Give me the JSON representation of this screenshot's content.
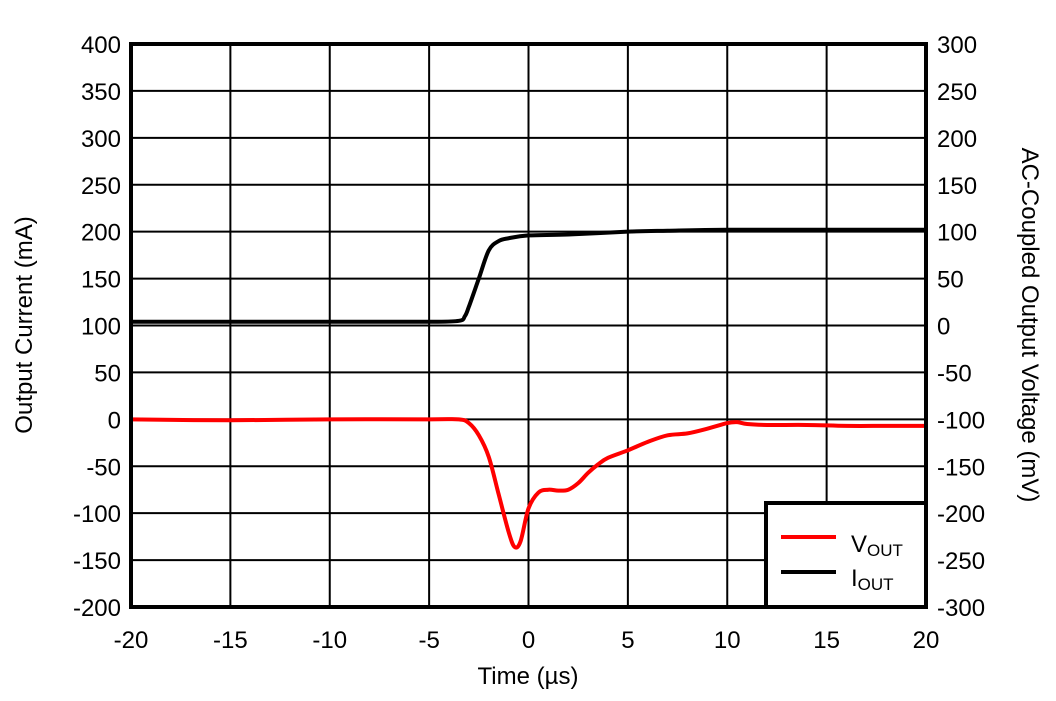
{
  "chart_data": {
    "type": "line",
    "title": "",
    "xlabel": "Time (µs)",
    "ylabel": "Output Current (mA)",
    "ylabel_right": "AC-Coupled Output Voltage (mV)",
    "xlim": [
      -20,
      20
    ],
    "ylim": [
      -200,
      400
    ],
    "ylim_right": [
      -300,
      300
    ],
    "x_ticks": [
      "-20",
      "-15",
      "-10",
      "-5",
      "0",
      "5",
      "10",
      "15",
      "20"
    ],
    "y_ticks": [
      "400",
      "350",
      "300",
      "250",
      "200",
      "150",
      "100",
      "50",
      "0",
      "-50",
      "-100",
      "-150",
      "-200"
    ],
    "y_ticks_right": [
      "300",
      "250",
      "200",
      "150",
      "100",
      "50",
      "0",
      "-50",
      "-100",
      "-150",
      "-200",
      "-250",
      "-300"
    ],
    "grid": true,
    "legend_position": "lower right",
    "series": [
      {
        "name": "VOUT",
        "label_main": "V",
        "label_sub": "OUT",
        "axis": "right",
        "color": "#ff0000",
        "x": [
          -20,
          -15,
          -10,
          -5,
          -3.5,
          -3,
          -2.5,
          -2,
          -1.5,
          -1,
          -0.7,
          -0.4,
          0,
          0.5,
          1,
          1.5,
          2,
          2.5,
          3,
          3.5,
          4,
          5,
          6,
          7,
          8,
          9,
          10,
          10.5,
          11,
          12,
          14,
          16,
          18,
          20
        ],
        "y": [
          -100,
          -101,
          -100,
          -100,
          -100,
          -104,
          -117,
          -140,
          -180,
          -220,
          -236,
          -230,
          -195,
          -178,
          -175,
          -176,
          -175,
          -168,
          -157,
          -148,
          -141,
          -133,
          -124,
          -117,
          -115,
          -110,
          -104,
          -103,
          -105,
          -106,
          -106,
          -107,
          -107,
          -107
        ]
      },
      {
        "name": "IOUT",
        "label_main": "I",
        "label_sub": "OUT",
        "axis": "left",
        "color": "#000000",
        "x": [
          -20,
          -15,
          -10,
          -5,
          -3.5,
          -3.2,
          -3,
          -2.5,
          -2,
          -1.5,
          -1,
          0,
          2,
          5,
          7,
          10,
          15,
          20
        ],
        "y": [
          104,
          104,
          104,
          104,
          105,
          110,
          120,
          150,
          180,
          190,
          193,
          196,
          197,
          200,
          201,
          202,
          202,
          202
        ]
      }
    ]
  }
}
